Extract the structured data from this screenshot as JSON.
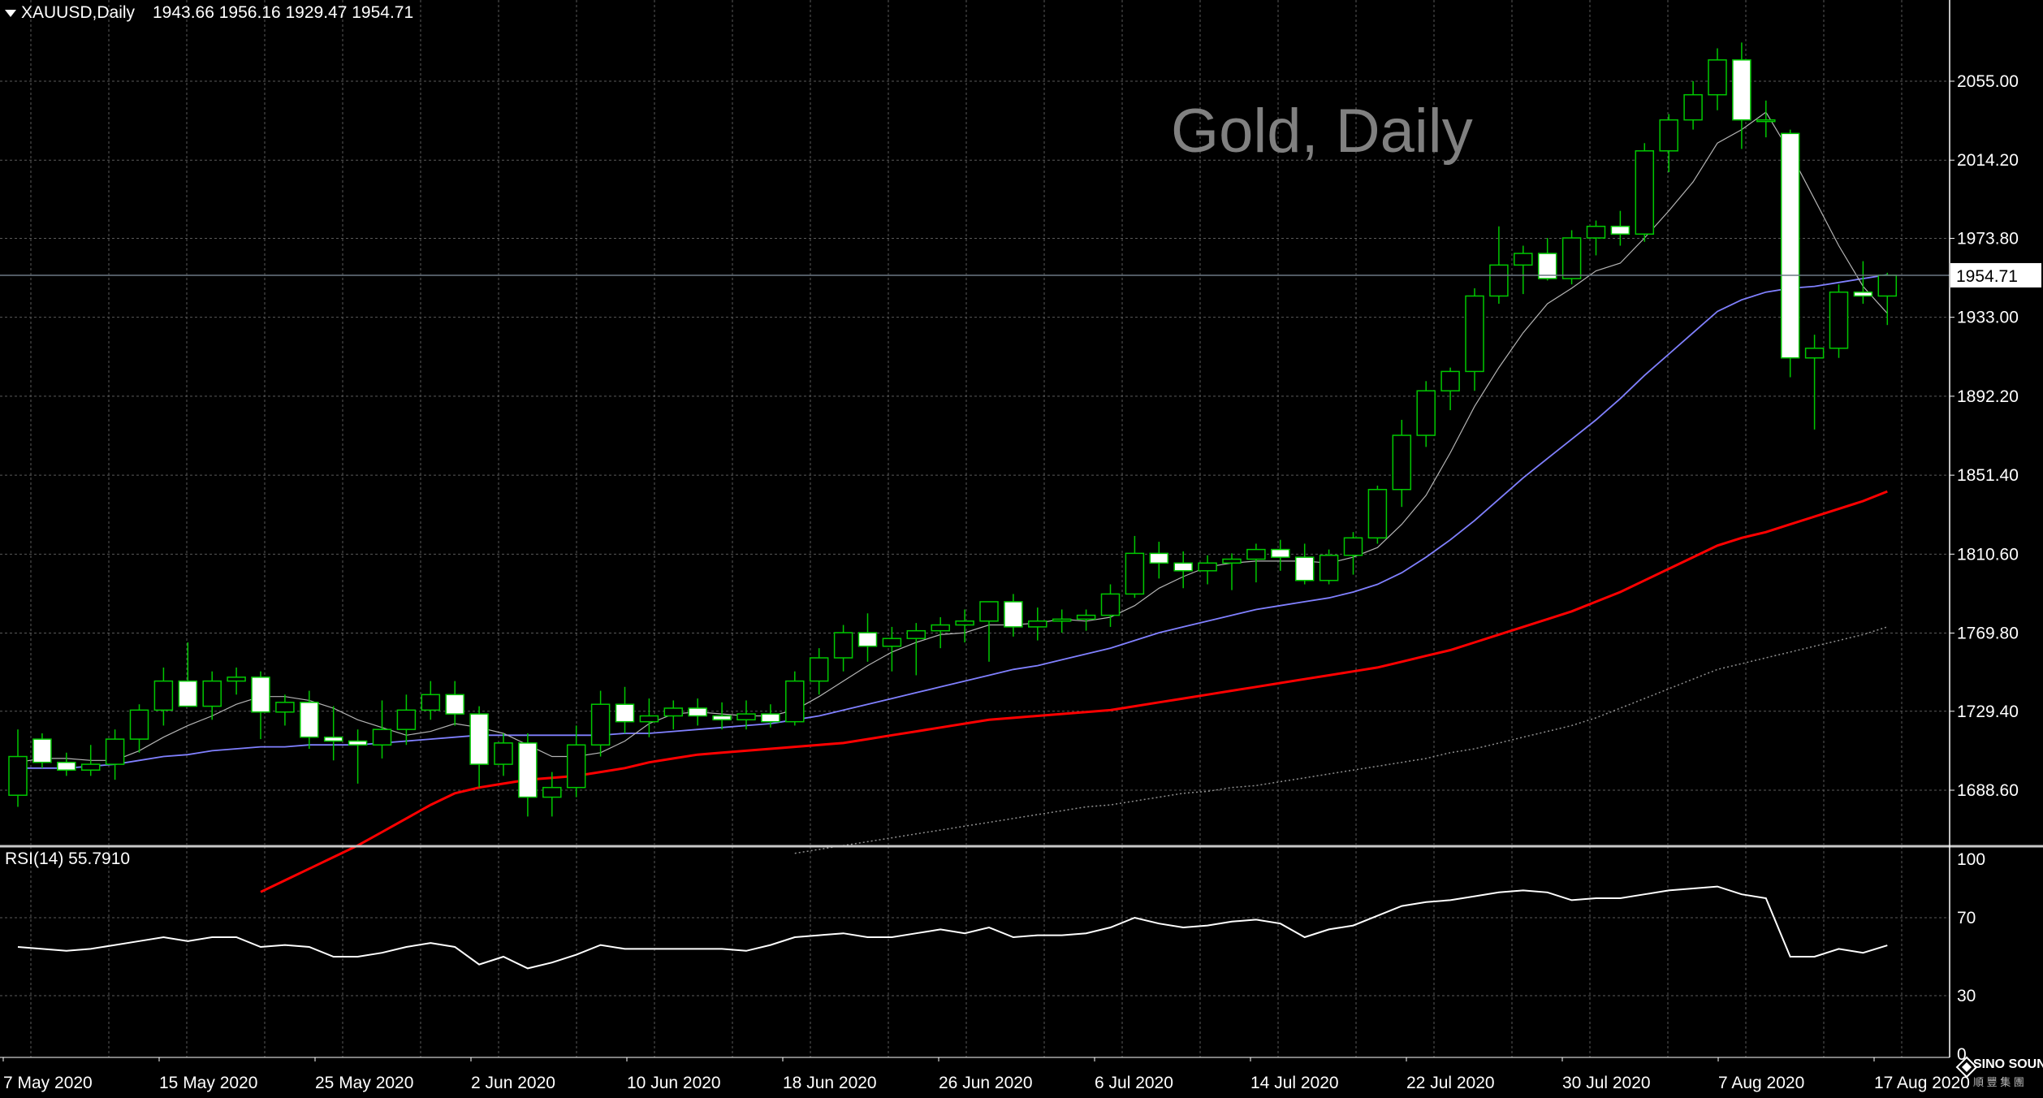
{
  "header": {
    "symbol_label": "XAUUSD,Daily",
    "ohlc": "1943.66 1956.16 1929.47 1954.71"
  },
  "watermark": "Gold, Daily",
  "rsi": {
    "label": "RSI(14) 55.7910",
    "levels": [
      "100",
      "70",
      "30",
      "0"
    ]
  },
  "brand": {
    "name": "SINO SOUND",
    "sub": "順 豐 集 團"
  },
  "colors": {
    "background": "#000000",
    "grid": "#5a5a5a",
    "bull_candle": "#00c800",
    "bear_candle": "#ffffff",
    "ma_fast": "#b4b4b4",
    "ma_mid": "#8080ff",
    "ma_slow": "#ff0000",
    "ma_long": "#909090",
    "price_line": "#6c7884",
    "rsi_line": "#ffffff"
  },
  "chart_data": {
    "type": "candlestick",
    "symbol": "XAUUSD",
    "timeframe": "Daily",
    "price_axis_ticks": [
      2055.0,
      2014.2,
      1973.8,
      1933.0,
      1892.2,
      1851.4,
      1810.6,
      1769.8,
      1729.4,
      1688.6
    ],
    "current_price": 1954.71,
    "current_price_label": "1954.71",
    "date_labels": [
      "7 May 2020",
      "15 May 2020",
      "25 May 2020",
      "2 Jun 2020",
      "10 Jun 2020",
      "18 Jun 2020",
      "26 Jun 2020",
      "6 Jul 2020",
      "14 Jul 2020",
      "22 Jul 2020",
      "30 Jul 2020",
      "7 Aug 2020",
      "17 Aug 2020"
    ],
    "ohlc": [
      [
        1686,
        1720,
        1680,
        1706
      ],
      [
        1715,
        1718,
        1700,
        1703
      ],
      [
        1703,
        1708,
        1696,
        1699
      ],
      [
        1699,
        1712,
        1696,
        1702
      ],
      [
        1702,
        1720,
        1694,
        1715
      ],
      [
        1715,
        1733,
        1708,
        1730
      ],
      [
        1730,
        1752,
        1722,
        1745
      ],
      [
        1745,
        1765,
        1735,
        1732
      ],
      [
        1732,
        1750,
        1725,
        1745
      ],
      [
        1745,
        1752,
        1738,
        1747
      ],
      [
        1747,
        1750,
        1715,
        1729
      ],
      [
        1729,
        1738,
        1722,
        1734
      ],
      [
        1734,
        1740,
        1710,
        1716
      ],
      [
        1716,
        1732,
        1704,
        1714
      ],
      [
        1714,
        1720,
        1692,
        1712
      ],
      [
        1712,
        1735,
        1705,
        1720
      ],
      [
        1720,
        1738,
        1712,
        1730
      ],
      [
        1730,
        1745,
        1725,
        1738
      ],
      [
        1738,
        1745,
        1722,
        1728
      ],
      [
        1728,
        1732,
        1690,
        1702
      ],
      [
        1702,
        1718,
        1696,
        1713
      ],
      [
        1713,
        1718,
        1675,
        1685
      ],
      [
        1685,
        1698,
        1675,
        1690
      ],
      [
        1690,
        1722,
        1685,
        1712
      ],
      [
        1712,
        1740,
        1706,
        1733
      ],
      [
        1733,
        1742,
        1718,
        1724
      ],
      [
        1724,
        1736,
        1716,
        1727
      ],
      [
        1727,
        1735,
        1720,
        1731
      ],
      [
        1731,
        1736,
        1722,
        1727
      ],
      [
        1727,
        1734,
        1720,
        1725
      ],
      [
        1725,
        1735,
        1720,
        1728
      ],
      [
        1728,
        1733,
        1721,
        1724
      ],
      [
        1724,
        1750,
        1722,
        1745
      ],
      [
        1745,
        1762,
        1738,
        1757
      ],
      [
        1757,
        1774,
        1750,
        1770
      ],
      [
        1770,
        1780,
        1755,
        1763
      ],
      [
        1763,
        1773,
        1750,
        1767
      ],
      [
        1767,
        1775,
        1748,
        1771
      ],
      [
        1771,
        1778,
        1762,
        1774
      ],
      [
        1774,
        1782,
        1765,
        1776
      ],
      [
        1776,
        1785,
        1755,
        1786
      ],
      [
        1786,
        1790,
        1768,
        1773
      ],
      [
        1773,
        1783,
        1766,
        1776
      ],
      [
        1776,
        1782,
        1770,
        1777
      ],
      [
        1777,
        1782,
        1771,
        1779
      ],
      [
        1779,
        1795,
        1773,
        1790
      ],
      [
        1790,
        1820,
        1788,
        1811
      ],
      [
        1811,
        1817,
        1798,
        1806
      ],
      [
        1806,
        1812,
        1793,
        1802
      ],
      [
        1802,
        1810,
        1795,
        1806
      ],
      [
        1806,
        1811,
        1792,
        1808
      ],
      [
        1808,
        1816,
        1796,
        1813
      ],
      [
        1813,
        1818,
        1802,
        1809
      ],
      [
        1809,
        1816,
        1795,
        1797
      ],
      [
        1797,
        1813,
        1795,
        1810
      ],
      [
        1810,
        1822,
        1800,
        1819
      ],
      [
        1819,
        1846,
        1816,
        1844
      ],
      [
        1844,
        1880,
        1835,
        1872
      ],
      [
        1872,
        1900,
        1866,
        1895
      ],
      [
        1895,
        1907,
        1885,
        1905
      ],
      [
        1905,
        1948,
        1895,
        1944
      ],
      [
        1944,
        1980,
        1940,
        1960
      ],
      [
        1960,
        1970,
        1945,
        1966
      ],
      [
        1966,
        1974,
        1952,
        1953
      ],
      [
        1953,
        1978,
        1950,
        1974
      ],
      [
        1974,
        1983,
        1965,
        1980
      ],
      [
        1980,
        1988,
        1970,
        1976
      ],
      [
        1976,
        2023,
        1972,
        2019
      ],
      [
        2019,
        2038,
        2008,
        2035
      ],
      [
        2035,
        2055,
        2030,
        2048
      ],
      [
        2048,
        2072,
        2040,
        2066
      ],
      [
        2066,
        2075,
        2020,
        2035
      ],
      [
        2035,
        2045,
        2026,
        2035
      ],
      [
        2028,
        2030,
        1902,
        1912
      ],
      [
        1912,
        1924,
        1875,
        1917
      ],
      [
        1917,
        1950,
        1912,
        1946
      ],
      [
        1946,
        1962,
        1940,
        1944
      ],
      [
        1944,
        1956,
        1929,
        1954.71
      ]
    ],
    "ma_fast": [
      1703,
      1705,
      1705,
      1704,
      1704,
      1709,
      1716,
      1722,
      1727,
      1733,
      1737,
      1737,
      1735,
      1731,
      1725,
      1721,
      1717,
      1719,
      1723,
      1721,
      1718,
      1712,
      1706,
      1706,
      1708,
      1714,
      1723,
      1728,
      1729,
      1728,
      1727,
      1727,
      1730,
      1737,
      1745,
      1753,
      1760,
      1765,
      1769,
      1770,
      1774,
      1774,
      1775,
      1777,
      1776,
      1778,
      1784,
      1793,
      1799,
      1804,
      1806,
      1807,
      1807,
      1807,
      1806,
      1809,
      1814,
      1826,
      1841,
      1863,
      1887,
      1907,
      1925,
      1940,
      1948,
      1957,
      1961,
      1974,
      1988,
      2003,
      2023,
      2030,
      2039,
      2018,
      1994,
      1970,
      1949,
      1935
    ],
    "ma_mid": [
      1700,
      1700,
      1700,
      1701,
      1702,
      1704,
      1706,
      1707,
      1709,
      1710,
      1711,
      1711,
      1712,
      1712,
      1712,
      1713,
      1714,
      1715,
      1716,
      1717,
      1717,
      1717,
      1717,
      1717,
      1717,
      1718,
      1718,
      1719,
      1720,
      1721,
      1722,
      1723,
      1725,
      1727,
      1730,
      1733,
      1736,
      1739,
      1742,
      1745,
      1748,
      1751,
      1753,
      1756,
      1759,
      1762,
      1766,
      1770,
      1773,
      1776,
      1779,
      1782,
      1784,
      1786,
      1788,
      1791,
      1795,
      1801,
      1809,
      1818,
      1828,
      1839,
      1850,
      1860,
      1870,
      1880,
      1891,
      1903,
      1914,
      1925,
      1936,
      1942,
      1946,
      1948,
      1949,
      1951,
      1953,
      1955
    ],
    "ma_slow": [
      null,
      null,
      null,
      null,
      null,
      null,
      null,
      null,
      null,
      null,
      1636,
      1642,
      1648,
      1654,
      1660,
      1667,
      1674,
      1681,
      1687,
      1690,
      1692,
      1694,
      1695,
      1696,
      1698,
      1700,
      1703,
      1705,
      1707,
      1708,
      1709,
      1710,
      1711,
      1712,
      1713,
      1715,
      1717,
      1719,
      1721,
      1723,
      1725,
      1726,
      1727,
      1728,
      1729,
      1730,
      1732,
      1734,
      1736,
      1738,
      1740,
      1742,
      1744,
      1746,
      1748,
      1750,
      1752,
      1755,
      1758,
      1761,
      1765,
      1769,
      1773,
      1777,
      1781,
      1786,
      1791,
      1797,
      1803,
      1809,
      1815,
      1819,
      1822,
      1826,
      1830,
      1834,
      1838,
      1843
    ],
    "ma_long": [
      null,
      null,
      null,
      null,
      null,
      null,
      null,
      null,
      null,
      null,
      null,
      null,
      null,
      null,
      null,
      null,
      null,
      null,
      null,
      null,
      null,
      null,
      null,
      null,
      null,
      null,
      null,
      null,
      null,
      null,
      null,
      null,
      1656,
      1658,
      1660,
      1662,
      1664,
      1666,
      1668,
      1670,
      1672,
      1674,
      1676,
      1678,
      1680,
      1681,
      1683,
      1685,
      1687,
      1688,
      1690,
      1691,
      1693,
      1695,
      1697,
      1699,
      1701,
      1703,
      1705,
      1708,
      1710,
      1713,
      1716,
      1719,
      1722,
      1726,
      1731,
      1736,
      1741,
      1746,
      1751,
      1754,
      1757,
      1760,
      1763,
      1766,
      1769,
      1773
    ],
    "rsi_values": [
      55,
      54,
      53,
      54,
      56,
      58,
      60,
      58,
      60,
      60,
      55,
      56,
      55,
      50,
      50,
      52,
      55,
      57,
      55,
      46,
      50,
      44,
      47,
      51,
      56,
      54,
      54,
      54,
      54,
      54,
      53,
      56,
      60,
      61,
      62,
      60,
      60,
      62,
      64,
      62,
      65,
      60,
      61,
      61,
      62,
      65,
      70,
      67,
      65,
      66,
      68,
      69,
      67,
      60,
      64,
      66,
      71,
      76,
      78,
      79,
      81,
      83,
      84,
      83,
      79,
      80,
      80,
      82,
      84,
      85,
      86,
      82,
      80,
      50,
      50,
      54,
      52,
      55.791
    ]
  }
}
